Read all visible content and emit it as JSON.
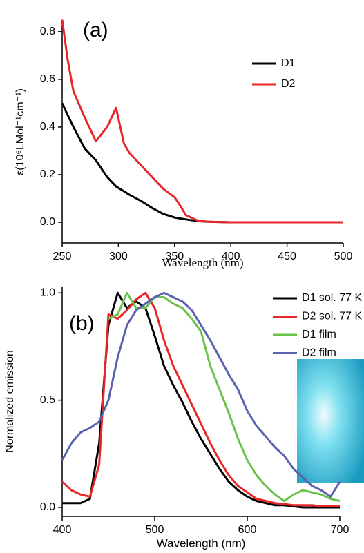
{
  "chart_data": [
    {
      "type": "line",
      "annotation": "(a)",
      "x_label": "Wavelength (nm)",
      "y_label": "ε(10⁶LMol⁻¹cm⁻¹)",
      "x": [
        250,
        255,
        260,
        270,
        280,
        290,
        298,
        305,
        310,
        320,
        330,
        340,
        350,
        355,
        360,
        370,
        380,
        400,
        450,
        500
      ],
      "series": [
        {
          "name": "D1",
          "color": "#000000",
          "values": [
            0.5,
            0.45,
            0.4,
            0.31,
            0.26,
            0.19,
            0.15,
            0.13,
            0.115,
            0.09,
            0.06,
            0.035,
            0.02,
            0.016,
            0.012,
            0.005,
            0.002,
            0,
            0,
            0
          ]
        },
        {
          "name": "D2",
          "color": "#e8262a",
          "values": [
            0.85,
            0.68,
            0.55,
            0.44,
            0.34,
            0.4,
            0.48,
            0.33,
            0.29,
            0.24,
            0.19,
            0.14,
            0.105,
            0.07,
            0.03,
            0.008,
            0.002,
            0,
            0,
            0
          ]
        }
      ],
      "xlim": [
        250,
        500
      ],
      "xticks": [
        250,
        300,
        350,
        400,
        450,
        500
      ],
      "ylim": [
        -0.087,
        0.846
      ],
      "yticks": [
        {
          "value": 0,
          "label": "0.0"
        },
        0.2,
        0.4,
        0.6,
        0.8
      ],
      "legend": "upper right"
    },
    {
      "type": "line",
      "annotation": "(b)",
      "x_label": "Wavelength (nm)",
      "y_label": "Normalized emission",
      "x": [
        400,
        410,
        420,
        430,
        440,
        450,
        460,
        470,
        480,
        490,
        500,
        510,
        520,
        530,
        540,
        550,
        560,
        570,
        580,
        590,
        600,
        610,
        620,
        630,
        640,
        650,
        660,
        670,
        680,
        690,
        700
      ],
      "series": [
        {
          "name": "D1 sol. 77 K",
          "color": "#000000",
          "values": [
            0.02,
            0.02,
            0.02,
            0.04,
            0.3,
            0.85,
            1.0,
            0.93,
            0.96,
            0.93,
            0.8,
            0.66,
            0.57,
            0.49,
            0.4,
            0.32,
            0.25,
            0.18,
            0.12,
            0.08,
            0.05,
            0.03,
            0.02,
            0.01,
            0.01,
            0.005,
            0,
            0,
            0,
            0,
            0
          ]
        },
        {
          "name": "D2 sol. 77 K",
          "color": "#e8262a",
          "values": [
            0.12,
            0.08,
            0.06,
            0.05,
            0.2,
            0.9,
            0.88,
            0.92,
            0.97,
            1.0,
            0.93,
            0.78,
            0.66,
            0.57,
            0.48,
            0.39,
            0.3,
            0.22,
            0.15,
            0.1,
            0.07,
            0.04,
            0.03,
            0.02,
            0.015,
            0.01,
            0.01,
            0.01,
            0.005,
            0.005,
            0.005
          ]
        },
        {
          "name": "D1 film",
          "color": "#6cc24a",
          "values": [
            null,
            null,
            null,
            null,
            null,
            0.88,
            0.9,
            1.0,
            0.93,
            0.93,
            0.98,
            0.98,
            0.95,
            0.93,
            0.88,
            0.82,
            0.66,
            0.55,
            0.44,
            0.32,
            0.22,
            0.15,
            0.1,
            0.06,
            0.03,
            0.06,
            0.08,
            0.07,
            0.06,
            0.04,
            0.03
          ]
        },
        {
          "name": "D2 film",
          "color": "#5a62b0",
          "values": [
            0.22,
            0.3,
            0.35,
            0.37,
            0.4,
            0.5,
            0.7,
            0.85,
            0.92,
            0.95,
            0.98,
            1.0,
            0.98,
            0.96,
            0.92,
            0.85,
            0.78,
            0.7,
            0.62,
            0.55,
            0.45,
            0.38,
            0.33,
            0.28,
            0.24,
            0.18,
            0.14,
            0.1,
            0.08,
            0.05,
            0.12
          ]
        }
      ],
      "xlim": [
        400,
        700
      ],
      "xticks": [
        400,
        500,
        600,
        700
      ],
      "ylim": [
        -0.042,
        1.03
      ],
      "yticks": [
        {
          "value": 0,
          "label": "0.0"
        },
        0.5,
        {
          "value": 1,
          "label": "1.0"
        }
      ],
      "legend": "upper right"
    }
  ]
}
